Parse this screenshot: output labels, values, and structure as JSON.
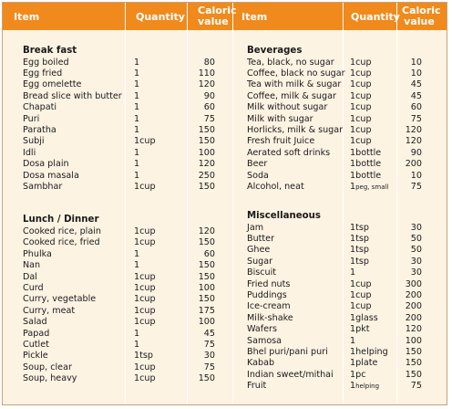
{
  "headers": {
    "item": "Item",
    "quantity": "Quantity",
    "caloric_line1": "Caloric",
    "caloric_line2": "value"
  },
  "left": {
    "breakfast": {
      "title": "Break fast",
      "rows": [
        {
          "item": "Egg boiled",
          "qty": "1",
          "cal": "80"
        },
        {
          "item": "Egg fried",
          "qty": "1",
          "cal": "110"
        },
        {
          "item": "Egg omelette",
          "qty": "1",
          "cal": "120"
        },
        {
          "item": "Bread slice with butter",
          "qty": "1",
          "cal": "90"
        },
        {
          "item": "Chapati",
          "qty": "1",
          "cal": "60"
        },
        {
          "item": "Puri",
          "qty": "1",
          "cal": "75"
        },
        {
          "item": "Paratha",
          "qty": "1",
          "cal": "150"
        },
        {
          "item": "Subji",
          "qty": "1cup",
          "cal": "150"
        },
        {
          "item": "Idli",
          "qty": "1",
          "cal": "100"
        },
        {
          "item": "Dosa plain",
          "qty": "1",
          "cal": "120"
        },
        {
          "item": "Dosa masala",
          "qty": "1",
          "cal": "250"
        },
        {
          "item": "Sambhar",
          "qty": "1cup",
          "cal": "150"
        }
      ]
    },
    "lunch": {
      "title": "Lunch / Dinner",
      "rows": [
        {
          "item": "Cooked rice, plain",
          "qty": "1cup",
          "cal": "120"
        },
        {
          "item": "Cooked rice, fried",
          "qty": "1cup",
          "cal": "150"
        },
        {
          "item": "Phulka",
          "qty": "1",
          "cal": "60"
        },
        {
          "item": "Nan",
          "qty": "1",
          "cal": "150"
        },
        {
          "item": "Dal",
          "qty": "1cup",
          "cal": "150"
        },
        {
          "item": "Curd",
          "qty": "1cup",
          "cal": "100"
        },
        {
          "item": "Curry, vegetable",
          "qty": "1cup",
          "cal": "150"
        },
        {
          "item": "Curry, meat",
          "qty": "1cup",
          "cal": "175"
        },
        {
          "item": "Salad",
          "qty": "1cup",
          "cal": "100"
        },
        {
          "item": "Papad",
          "qty": "1",
          "cal": "45"
        },
        {
          "item": "Cutlet",
          "qty": "1",
          "cal": "75"
        },
        {
          "item": "Pickle",
          "qty": "1tsp",
          "cal": "30"
        },
        {
          "item": "Soup, clear",
          "qty": "1cup",
          "cal": "75"
        },
        {
          "item": "Soup, heavy",
          "qty": "1cup",
          "cal": "150"
        }
      ]
    }
  },
  "right": {
    "beverages": {
      "title": "Beverages",
      "rows": [
        {
          "item": "Tea, black, no sugar",
          "qty": "1cup",
          "cal": "10"
        },
        {
          "item": "Coffee, black no sugar",
          "qty": "1cup",
          "cal": "10"
        },
        {
          "item": "Tea with milk & sugar",
          "qty": "1cup",
          "cal": "45"
        },
        {
          "item": "Coffee, milk & sugar",
          "qty": "1cup",
          "cal": "45"
        },
        {
          "item": "Milk without sugar",
          "qty": "1cup",
          "cal": "60"
        },
        {
          "item": "Milk with sugar",
          "qty": "1cup",
          "cal": "75"
        },
        {
          "item": "Horlicks, milk & sugar",
          "qty": "1cup",
          "cal": "120"
        },
        {
          "item": "Fresh fruit Juice",
          "qty": "1cup",
          "cal": "120"
        },
        {
          "item": "Aerated soft drinks",
          "qty": "1bottle",
          "cal": "90"
        },
        {
          "item": "Beer",
          "qty": "1bottle",
          "cal": "200"
        },
        {
          "item": "Soda",
          "qty": "1bottle",
          "cal": "10"
        },
        {
          "item": "Alcohol, neat",
          "qty_num": "1",
          "qty_unit": "peg, small",
          "cal": "75"
        }
      ]
    },
    "misc": {
      "title": "Miscellaneous",
      "rows": [
        {
          "item": "Jam",
          "qty": "1tsp",
          "cal": "30"
        },
        {
          "item": "Butter",
          "qty": "1tsp",
          "cal": "50"
        },
        {
          "item": "Ghee",
          "qty": "1tsp",
          "cal": "50"
        },
        {
          "item": "Sugar",
          "qty": "1tsp",
          "cal": "30"
        },
        {
          "item": "Biscuit",
          "qty": "1",
          "cal": "30"
        },
        {
          "item": "Fried nuts",
          "qty": "1cup",
          "cal": "300"
        },
        {
          "item": "Puddings",
          "qty": "1cup",
          "cal": "200"
        },
        {
          "item": "Ice-cream",
          "qty": "1cup",
          "cal": "200"
        },
        {
          "item": "Milk-shake",
          "qty": "1glass",
          "cal": "200"
        },
        {
          "item": "Wafers",
          "qty": "1pkt",
          "cal": "120"
        },
        {
          "item": "Samosa",
          "qty": "1",
          "cal": "100"
        },
        {
          "item": "Bhel puri/pani puri",
          "qty": "1helping",
          "cal": "150"
        },
        {
          "item": "Kabab",
          "qty": "1plate",
          "cal": "150"
        },
        {
          "item": "Indian sweet/mithai",
          "qty": "1pc",
          "cal": "150"
        },
        {
          "item": "Fruit",
          "qty_num": "1",
          "qty_unit": "helping",
          "cal": "75"
        }
      ]
    }
  },
  "colors": {
    "header": "#f08a1c",
    "background": "#fdf3e3",
    "header_text": "#ffffff"
  }
}
